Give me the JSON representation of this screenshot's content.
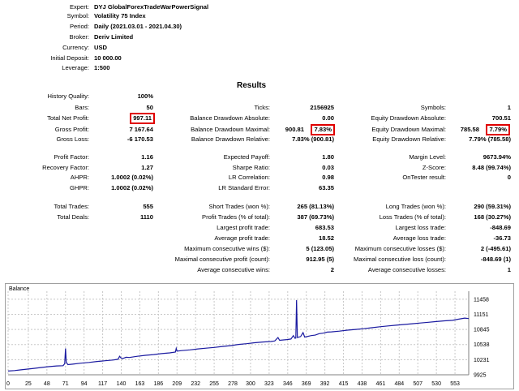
{
  "header": [
    {
      "label": "Expert:",
      "value": "DYJ GlobalForexTradeWarPowerSignal"
    },
    {
      "label": "Symbol:",
      "value": "Volatility 75 Index"
    },
    {
      "label": "Period:",
      "value": "Daily (2021.03.01 - 2021.04.30)"
    },
    {
      "label": "Broker:",
      "value": "Deriv Limited"
    },
    {
      "label": "Currency:",
      "value": "USD"
    },
    {
      "label": "Initial Deposit:",
      "value": "10 000.00"
    },
    {
      "label": "Leverage:",
      "value": "1:500"
    }
  ],
  "results_title": "Results",
  "col1": [
    {
      "label": "History Quality:",
      "value": "100%"
    },
    {
      "label": "Bars:",
      "value": "50"
    },
    {
      "label": "Total Net Profit:",
      "value": "997.11"
    },
    {
      "label": "Gross Profit:",
      "value": "7 167.64"
    },
    {
      "label": "Gross Loss:",
      "value": "-6 170.53"
    },
    {
      "label": "Profit Factor:",
      "value": "1.16"
    },
    {
      "label": "Recovery Factor:",
      "value": "1.27"
    },
    {
      "label": "AHPR:",
      "value": "1.0002 (0.02%)"
    },
    {
      "label": "GHPR:",
      "value": "1.0002 (0.02%)"
    },
    {
      "label": "Total Trades:",
      "value": "555"
    },
    {
      "label": "Total Deals:",
      "value": "1110"
    }
  ],
  "col2": [
    {
      "label": "Ticks:",
      "value": "2156925"
    },
    {
      "label": "Balance Drawdown Absolute:",
      "value": "0.00"
    },
    {
      "label": "Balance Drawdown Maximal:",
      "value": "900.81",
      "value2": "7.83%"
    },
    {
      "label": "Balance Drawdown Relative:",
      "value": "7.83% (900.81)"
    },
    {
      "label": "Expected Payoff:",
      "value": "1.80"
    },
    {
      "label": "Sharpe Ratio:",
      "value": "0.03"
    },
    {
      "label": "LR Correlation:",
      "value": "0.98"
    },
    {
      "label": "LR Standard Error:",
      "value": "63.35"
    },
    {
      "label": "Short Trades (won %):",
      "value": "265 (81.13%)"
    },
    {
      "label": "Profit Trades (% of total):",
      "value": "387 (69.73%)"
    },
    {
      "label": "Largest profit trade:",
      "value": "683.53"
    },
    {
      "label": "Average profit trade:",
      "value": "18.52"
    },
    {
      "label": "Maximum consecutive wins ($):",
      "value": "5 (123.05)"
    },
    {
      "label": "Maximal consecutive profit (count):",
      "value": "912.95 (5)"
    },
    {
      "label": "Average consecutive wins:",
      "value": "2"
    }
  ],
  "col3": [
    {
      "label": "Symbols:",
      "value": "1"
    },
    {
      "label": "Equity Drawdown Absolute:",
      "value": "700.51"
    },
    {
      "label": "Equity Drawdown Maximal:",
      "value": "785.58",
      "value2": "7.79%"
    },
    {
      "label": "Equity Drawdown Relative:",
      "value": "7.79% (785.58)"
    },
    {
      "label": "Margin Level:",
      "value": "9673.94%"
    },
    {
      "label": "Z-Score:",
      "value": "8.48 (99.74%)"
    },
    {
      "label": "OnTester result:",
      "value": "0"
    },
    {
      "label": "Long Trades (won %):",
      "value": "290 (59.31%)"
    },
    {
      "label": "Loss Trades (% of total):",
      "value": "168 (30.27%)"
    },
    {
      "label": "Largest loss trade:",
      "value": "-848.69"
    },
    {
      "label": "Average loss trade:",
      "value": "-36.73"
    },
    {
      "label": "Maximum consecutive losses ($):",
      "value": "2 (-495.61)"
    },
    {
      "label": "Maximal consecutive loss (count):",
      "value": "-848.69 (1)"
    },
    {
      "label": "Average consecutive losses:",
      "value": "1"
    }
  ],
  "chart_data": {
    "type": "line",
    "title": "Balance",
    "line_color": "#1a1aa0",
    "y_ticks": [
      9925,
      10231,
      10538,
      10845,
      11151,
      11458
    ],
    "ylim": [
      9925,
      11620
    ],
    "x_ticks": [
      0,
      25,
      48,
      71,
      94,
      117,
      140,
      163,
      186,
      209,
      232,
      255,
      278,
      300,
      323,
      346,
      369,
      392,
      415,
      438,
      461,
      484,
      507,
      530,
      553
    ],
    "xlim": [
      0,
      570
    ],
    "points": [
      [
        0,
        10000
      ],
      [
        8,
        10010
      ],
      [
        16,
        10025
      ],
      [
        24,
        10040
      ],
      [
        32,
        10055
      ],
      [
        40,
        10072
      ],
      [
        50,
        10090
      ],
      [
        60,
        10105
      ],
      [
        68,
        10110
      ],
      [
        70,
        10150
      ],
      [
        71,
        10460
      ],
      [
        72,
        10180
      ],
      [
        74,
        10130
      ],
      [
        80,
        10140
      ],
      [
        90,
        10160
      ],
      [
        100,
        10175
      ],
      [
        110,
        10195
      ],
      [
        120,
        10210
      ],
      [
        130,
        10225
      ],
      [
        136,
        10240
      ],
      [
        138,
        10300
      ],
      [
        140,
        10260
      ],
      [
        142,
        10255
      ],
      [
        146,
        10280
      ],
      [
        150,
        10275
      ],
      [
        160,
        10300
      ],
      [
        170,
        10320
      ],
      [
        180,
        10335
      ],
      [
        190,
        10355
      ],
      [
        200,
        10370
      ],
      [
        207,
        10385
      ],
      [
        208,
        10460
      ],
      [
        209,
        10405
      ],
      [
        215,
        10415
      ],
      [
        225,
        10430
      ],
      [
        235,
        10450
      ],
      [
        245,
        10465
      ],
      [
        255,
        10480
      ],
      [
        265,
        10500
      ],
      [
        275,
        10515
      ],
      [
        285,
        10540
      ],
      [
        295,
        10555
      ],
      [
        305,
        10575
      ],
      [
        315,
        10590
      ],
      [
        325,
        10600
      ],
      [
        330,
        10612
      ],
      [
        334,
        10680
      ],
      [
        336,
        10625
      ],
      [
        345,
        10640
      ],
      [
        350,
        10650
      ],
      [
        353,
        10720
      ],
      [
        355,
        10665
      ],
      [
        356,
        10670
      ],
      [
        357,
        11440
      ],
      [
        358,
        10680
      ],
      [
        362,
        10700
      ],
      [
        365,
        10780
      ],
      [
        367,
        10690
      ],
      [
        375,
        10720
      ],
      [
        380,
        10730
      ],
      [
        385,
        10760
      ],
      [
        390,
        10770
      ],
      [
        395,
        10790
      ],
      [
        400,
        10795
      ],
      [
        410,
        10810
      ],
      [
        420,
        10830
      ],
      [
        430,
        10845
      ],
      [
        440,
        10860
      ],
      [
        450,
        10880
      ],
      [
        460,
        10900
      ],
      [
        470,
        10915
      ],
      [
        480,
        10930
      ],
      [
        490,
        10945
      ],
      [
        500,
        10960
      ],
      [
        510,
        10975
      ],
      [
        520,
        10990
      ],
      [
        530,
        11005
      ],
      [
        540,
        11020
      ],
      [
        550,
        11030
      ],
      [
        555,
        11045
      ],
      [
        560,
        11060
      ],
      [
        565,
        11075
      ],
      [
        570,
        11065
      ]
    ]
  }
}
